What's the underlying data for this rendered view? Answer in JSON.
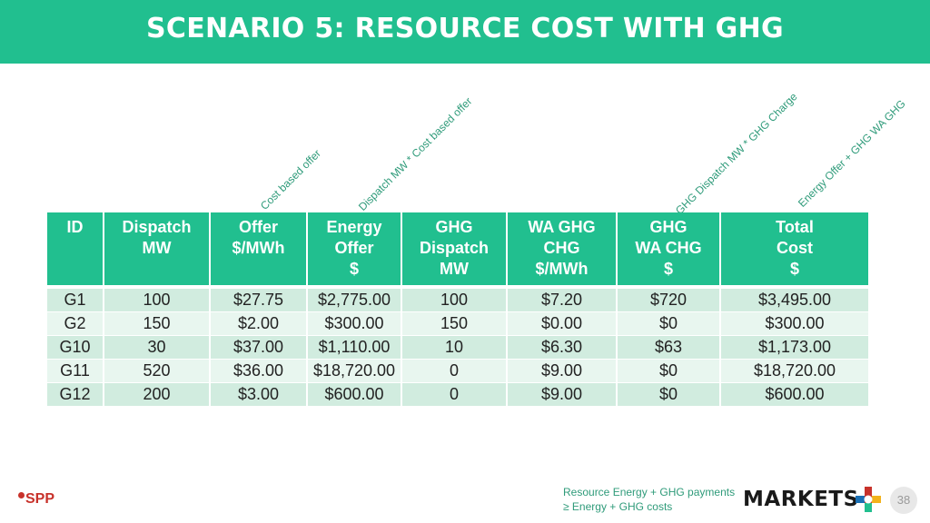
{
  "slide": {
    "title": "SCENARIO 5:  RESOURCE COST WITH GHG",
    "page_number": "38"
  },
  "annotations": {
    "offer": "Cost based offer",
    "energy": "Dispatch MW * Cost based offer",
    "ghg_wa": "GHG Dispatch MW * GHG Charge",
    "total": "Energy Offer + GHG WA GHG"
  },
  "table": {
    "headers": [
      [
        "ID"
      ],
      [
        "Dispatch",
        "MW"
      ],
      [
        "Offer",
        "$/MWh"
      ],
      [
        "Energy",
        "Offer",
        "$"
      ],
      [
        "GHG",
        "Dispatch",
        "MW"
      ],
      [
        "WA GHG",
        "CHG",
        "$/MWh"
      ],
      [
        "GHG",
        "WA CHG",
        "$"
      ],
      [
        "Total",
        "Cost",
        "$"
      ]
    ],
    "rows": [
      [
        "G1",
        "100",
        "$27.75",
        "$2,775.00",
        "100",
        "$7.20",
        "$720",
        "$3,495.00"
      ],
      [
        "G2",
        "150",
        "$2.00",
        "$300.00",
        "150",
        "$0.00",
        "$0",
        "$300.00"
      ],
      [
        "G10",
        "30",
        "$37.00",
        "$1,110.00",
        "10",
        "$6.30",
        "$63",
        "$1,173.00"
      ],
      [
        "G11",
        "520",
        "$36.00",
        "$18,720.00",
        "0",
        "$9.00",
        "$0",
        "$18,720.00"
      ],
      [
        "G12",
        "200",
        "$3.00",
        "$600.00",
        "0",
        "$9.00",
        "$0",
        "$600.00"
      ]
    ]
  },
  "footer": {
    "logo_text": "SPP",
    "note_line1": "Resource Energy + GHG payments",
    "note_line2": "≥ Energy + GHG costs",
    "brand": "MARKETS"
  },
  "colors": {
    "accent": "#21bf8f",
    "row_odd": "#d1ecdf",
    "row_even": "#e8f6ef",
    "logo_red": "#c8322b"
  }
}
